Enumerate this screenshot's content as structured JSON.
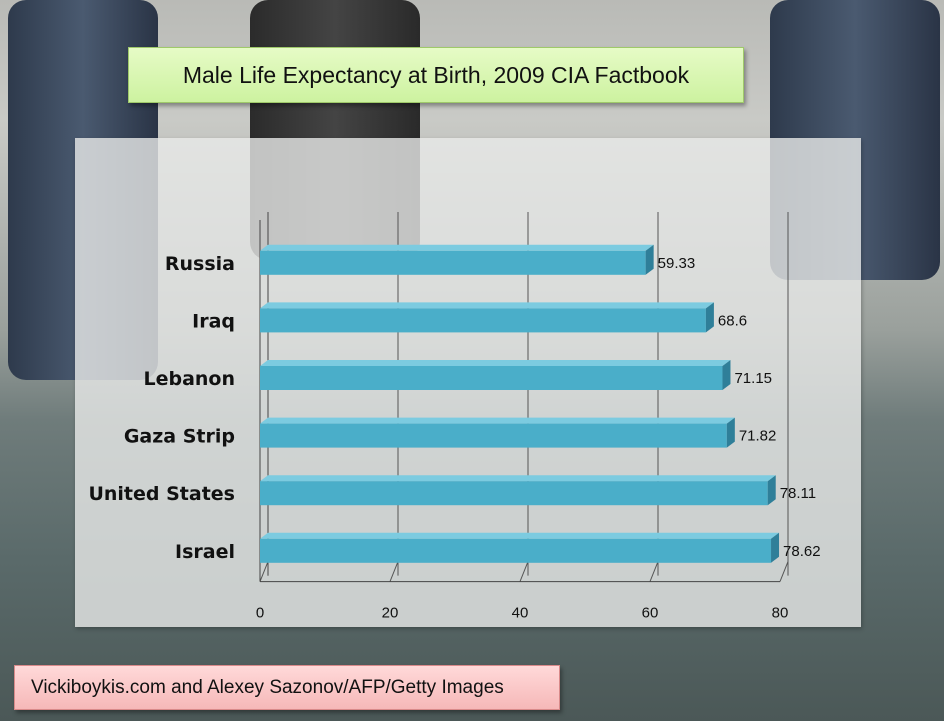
{
  "slide": {
    "title": "Male Life Expectancy at Birth, 2009 CIA Factbook",
    "credit": "Vickiboykis.com and Alexey Sazonov/AFP/Getty Images"
  },
  "colors": {
    "bar": "#4aaec9",
    "title_box": "#d8f5b0",
    "credit_box": "#fbc7c7"
  },
  "chart_data": {
    "type": "bar",
    "orientation": "horizontal",
    "categories": [
      "Russia",
      "Iraq",
      "Lebanon",
      "Gaza Strip",
      "United States",
      "Israel"
    ],
    "values": [
      59.33,
      68.6,
      71.15,
      71.82,
      78.11,
      78.62
    ],
    "data_labels": [
      "59.33",
      "68.6",
      "71.15",
      "71.82",
      "78.11",
      "78.62"
    ],
    "xlim": [
      0,
      80
    ],
    "xticks": [
      0,
      20,
      40,
      60,
      80
    ],
    "grid": true,
    "legend": "none"
  }
}
